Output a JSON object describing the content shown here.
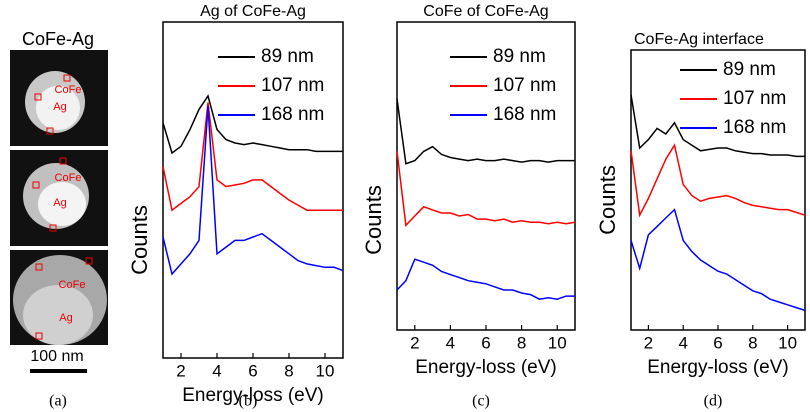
{
  "image_panel": {
    "title": "CoFe-Ag",
    "labels": [
      [
        "CoFe",
        "Ag"
      ],
      [
        "CoFe",
        "Ag"
      ],
      [
        "CoFe",
        "Ag"
      ]
    ],
    "scale_bar": "100 nm",
    "caption": "(a)"
  },
  "chart_data": [
    {
      "type": "line",
      "title": "Ag of CoFe-Ag",
      "caption": "(b)",
      "xlabel": "Energy-loss (eV)",
      "ylabel": "Counts",
      "xlim": [
        1,
        11
      ],
      "xticks": [
        2,
        4,
        6,
        8,
        10
      ],
      "ylim": [
        0,
        100
      ],
      "legend": "upper right",
      "x": [
        1,
        1.5,
        2,
        2.5,
        3,
        3.5,
        4,
        4.5,
        5,
        5.5,
        6,
        6.5,
        7,
        7.5,
        8,
        8.5,
        9,
        9.5,
        10,
        10.5,
        11
      ],
      "series": [
        {
          "name": "89 nm",
          "color": "#000000",
          "values": [
            70,
            61,
            63,
            68,
            74,
            78,
            68,
            65,
            64,
            63.5,
            64,
            63.5,
            63,
            62.5,
            62,
            62,
            62,
            61.5,
            61.5,
            61.5,
            61.5
          ]
        },
        {
          "name": "107 nm",
          "color": "#ff0000",
          "values": [
            57,
            44,
            46,
            48,
            51,
            76,
            53,
            51,
            51.5,
            52,
            53,
            53,
            51,
            49,
            47,
            45.5,
            44,
            44,
            44,
            44,
            44
          ]
        },
        {
          "name": "168 nm",
          "color": "#0000ff",
          "values": [
            36,
            25,
            28,
            31,
            35,
            75,
            31,
            33,
            35,
            35,
            36,
            37,
            35,
            33,
            31,
            29,
            28,
            27.5,
            27,
            27,
            26
          ]
        }
      ]
    },
    {
      "type": "line",
      "title": "CoFe of CoFe-Ag",
      "caption": "(c)",
      "xlabel": "Energy-loss (eV)",
      "ylabel": "Counts",
      "xlim": [
        1,
        11
      ],
      "xticks": [
        2,
        4,
        6,
        8,
        10
      ],
      "ylim": [
        0,
        100
      ],
      "legend": "upper right",
      "x": [
        1,
        1.5,
        2,
        2.5,
        3,
        3.5,
        4,
        4.5,
        5,
        5.5,
        6,
        6.5,
        7,
        7.5,
        8,
        8.5,
        9,
        9.5,
        10,
        10.5,
        11
      ],
      "series": [
        {
          "name": "89 nm",
          "color": "#000000",
          "values": [
            75,
            54,
            55,
            58,
            59.5,
            57,
            56,
            55.5,
            55,
            55.5,
            55,
            55,
            55.5,
            55,
            54.5,
            55,
            55,
            54.5,
            55,
            55,
            55
          ]
        },
        {
          "name": "107 nm",
          "color": "#ff0000",
          "values": [
            58,
            34,
            37,
            40,
            39,
            38,
            38,
            37,
            37.5,
            36,
            36,
            35.5,
            36,
            35,
            35.5,
            35,
            35,
            34.5,
            35,
            34.5,
            35
          ]
        },
        {
          "name": "168 nm",
          "color": "#0000ff",
          "values": [
            13,
            16,
            23,
            22,
            21,
            19,
            18,
            17,
            16,
            15.5,
            15,
            14,
            13,
            13,
            12,
            11.5,
            10,
            10.5,
            10,
            11,
            11
          ]
        }
      ]
    },
    {
      "type": "line",
      "title": "CoFe-Ag interface",
      "caption": "(d)",
      "xlabel": "Energy-loss (eV)",
      "ylabel": "Counts",
      "xlim": [
        1,
        11
      ],
      "xticks": [
        2,
        4,
        6,
        8,
        10
      ],
      "ylim": [
        0,
        100
      ],
      "legend": "upper right",
      "x": [
        1,
        1.5,
        2,
        2.5,
        3,
        3.5,
        4,
        4.5,
        5,
        5.5,
        6,
        6.5,
        7,
        7.5,
        8,
        8.5,
        9,
        9.5,
        10,
        10.5,
        11
      ],
      "series": [
        {
          "name": "89 nm",
          "color": "#000000",
          "values": [
            84,
            65,
            68,
            72,
            70,
            74,
            68,
            66,
            64,
            64.5,
            65,
            65,
            64,
            63.5,
            63,
            63,
            62.5,
            62.5,
            62.5,
            62,
            62
          ]
        },
        {
          "name": "107 nm",
          "color": "#ff0000",
          "values": [
            64,
            41,
            47,
            54,
            61,
            66,
            52,
            48,
            46,
            47,
            47.5,
            48,
            47,
            45.5,
            44.5,
            44,
            43.5,
            43,
            43,
            42,
            41
          ]
        },
        {
          "name": "168 nm",
          "color": "#0000ff",
          "values": [
            32,
            22,
            34,
            37,
            40,
            43,
            32,
            28,
            25,
            23,
            21,
            20,
            18,
            16,
            14,
            13,
            11,
            10,
            9,
            8,
            7
          ]
        }
      ]
    }
  ]
}
